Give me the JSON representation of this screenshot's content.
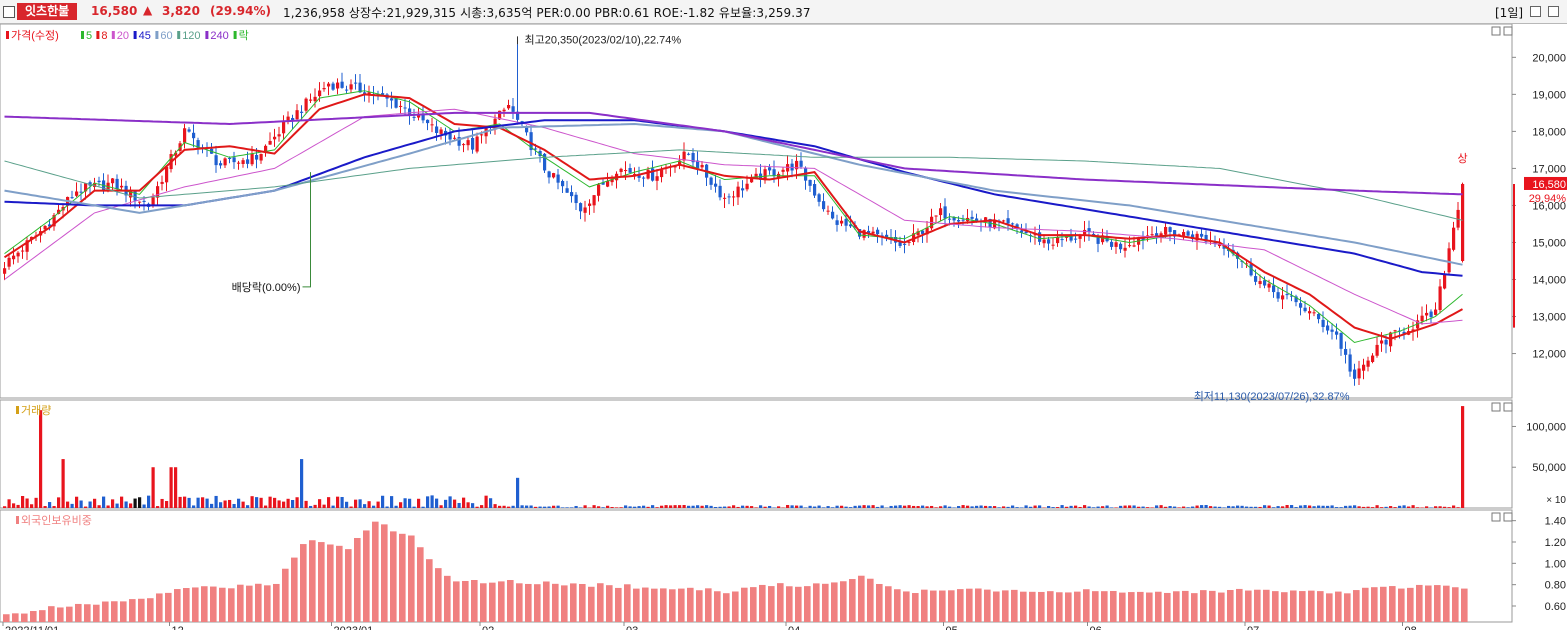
{
  "header": {
    "stock_name": "잇츠한불",
    "price": "16,580",
    "arrow": "▲",
    "change": "3,820",
    "change_pct": "(29.94%)",
    "metrics": "1,236,958  상장수:21,929,315  시총:3,635억  PER:0.00  PBR:0.61  ROE:-1.82  유보율:3,259.37",
    "period": "[1일]"
  },
  "colors": {
    "up": "#e8141d",
    "down": "#1f5fd0",
    "ma5": "#2db82d",
    "ma8": "#e01818",
    "ma20": "#cc55cc",
    "ma45": "#1a1ac8",
    "ma60": "#7f9fc8",
    "ma120": "#5aa08a",
    "ma240": "#8a2fc8",
    "foreign": "#f08080"
  },
  "panels": {
    "price": {
      "legend": [
        {
          "label": "가격(수정)",
          "color": "#e8141d"
        },
        {
          "label": "5",
          "color": "#2db82d"
        },
        {
          "label": "8",
          "color": "#e01818"
        },
        {
          "label": "20",
          "color": "#cc55cc"
        },
        {
          "label": "45",
          "color": "#1a1ac8"
        },
        {
          "label": "60",
          "color": "#7f9fc8"
        },
        {
          "label": "120",
          "color": "#5aa08a"
        },
        {
          "label": "240",
          "color": "#8a2fc8"
        },
        {
          "label": "락",
          "color": "#2db82d"
        }
      ],
      "annotations": {
        "high": "최고20,350(2023/02/10),22.74%",
        "low": "최저11,130(2023/07/26),32.87%",
        "dividend": "배당락(0.00%)",
        "limit_up": "상",
        "last_price": "16,580",
        "last_pct": "29.94%"
      }
    },
    "volume": {
      "legend": [
        {
          "label": "거래량",
          "color": "#d4a017"
        }
      ],
      "unit": "× 10"
    },
    "foreign": {
      "legend": [
        {
          "label": "외국인보유비중",
          "color": "#f08080"
        }
      ]
    }
  },
  "chart_data": [
    {
      "type": "candlestick",
      "title": "가격(수정)",
      "ylim": [
        10800,
        20900
      ],
      "y_ticks": [
        "20,000",
        "19,000",
        "18,000",
        "17,000",
        "16,000",
        "15,000",
        "14,000",
        "13,000",
        "12,000"
      ],
      "x_ticks": [
        "2022/11/01",
        "12",
        "2023/01",
        "02",
        "03",
        "04",
        "05",
        "06",
        "07",
        "08"
      ],
      "high": {
        "value": 20350,
        "date": "2023/02/10"
      },
      "low": {
        "value": 11130,
        "date": "2023/07/26"
      },
      "last": 16580,
      "close_path": [
        [
          0,
          14400
        ],
        [
          8,
          15300
        ],
        [
          16,
          16400
        ],
        [
          24,
          16600
        ],
        [
          32,
          16000
        ],
        [
          40,
          18000
        ],
        [
          48,
          17100
        ],
        [
          56,
          17300
        ],
        [
          64,
          18400
        ],
        [
          72,
          19300
        ],
        [
          80,
          19100
        ],
        [
          88,
          18700
        ],
        [
          96,
          18000
        ],
        [
          104,
          17600
        ],
        [
          112,
          18700
        ],
        [
          120,
          17000
        ],
        [
          128,
          15900
        ],
        [
          136,
          17000
        ],
        [
          144,
          16800
        ],
        [
          152,
          17400
        ],
        [
          160,
          16200
        ],
        [
          168,
          16800
        ],
        [
          176,
          17100
        ],
        [
          184,
          15600
        ],
        [
          192,
          15200
        ],
        [
          200,
          14900
        ],
        [
          208,
          15800
        ],
        [
          216,
          15600
        ],
        [
          224,
          15400
        ],
        [
          232,
          15000
        ],
        [
          240,
          15200
        ],
        [
          248,
          14900
        ],
        [
          256,
          15300
        ],
        [
          264,
          15200
        ],
        [
          272,
          14900
        ],
        [
          280,
          13800
        ],
        [
          288,
          13300
        ],
        [
          296,
          12500
        ],
        [
          300,
          11300
        ],
        [
          306,
          12300
        ],
        [
          312,
          12700
        ],
        [
          318,
          13100
        ],
        [
          324,
          16580
        ]
      ],
      "moving_averages": [
        {
          "name": "5",
          "points": [
            [
              0,
              14700
            ],
            [
              10,
              15600
            ],
            [
              20,
              16600
            ],
            [
              30,
              16300
            ],
            [
              40,
              17700
            ],
            [
              50,
              17300
            ],
            [
              60,
              17500
            ],
            [
              70,
              18900
            ],
            [
              80,
              19100
            ],
            [
              90,
              18800
            ],
            [
              100,
              18000
            ],
            [
              110,
              18200
            ],
            [
              120,
              17300
            ],
            [
              130,
              16500
            ],
            [
              140,
              16900
            ],
            [
              150,
              17200
            ],
            [
              160,
              16700
            ],
            [
              170,
              16800
            ],
            [
              180,
              16800
            ],
            [
              190,
              15200
            ],
            [
              200,
              15100
            ],
            [
              210,
              15700
            ],
            [
              220,
              15500
            ],
            [
              230,
              15100
            ],
            [
              240,
              15200
            ],
            [
              250,
              15000
            ],
            [
              260,
              15200
            ],
            [
              270,
              15000
            ],
            [
              280,
              14000
            ],
            [
              290,
              13300
            ],
            [
              300,
              12300
            ],
            [
              310,
              12600
            ],
            [
              318,
              13000
            ],
            [
              324,
              13600
            ]
          ]
        },
        {
          "name": "8",
          "points": [
            [
              0,
              14600
            ],
            [
              10,
              15400
            ],
            [
              20,
              16400
            ],
            [
              30,
              16400
            ],
            [
              40,
              17500
            ],
            [
              50,
              17600
            ],
            [
              60,
              17400
            ],
            [
              70,
              18600
            ],
            [
              80,
              19000
            ],
            [
              90,
              18900
            ],
            [
              100,
              18200
            ],
            [
              110,
              18100
            ],
            [
              120,
              17500
            ],
            [
              130,
              16700
            ],
            [
              140,
              16800
            ],
            [
              150,
              17100
            ],
            [
              160,
              16800
            ],
            [
              170,
              16700
            ],
            [
              180,
              16900
            ],
            [
              190,
              15300
            ],
            [
              200,
              15000
            ],
            [
              210,
              15500
            ],
            [
              220,
              15600
            ],
            [
              230,
              15200
            ],
            [
              240,
              15200
            ],
            [
              250,
              15100
            ],
            [
              260,
              15200
            ],
            [
              270,
              15000
            ],
            [
              280,
              14200
            ],
            [
              290,
              13600
            ],
            [
              300,
              12700
            ],
            [
              308,
              12400
            ],
            [
              318,
              12800
            ],
            [
              324,
              13200
            ]
          ]
        },
        {
          "name": "20",
          "points": [
            [
              0,
              14000
            ],
            [
              20,
              15800
            ],
            [
              40,
              16500
            ],
            [
              60,
              17000
            ],
            [
              80,
              18400
            ],
            [
              100,
              18600
            ],
            [
              120,
              18100
            ],
            [
              140,
              17400
            ],
            [
              160,
              17100
            ],
            [
              180,
              17000
            ],
            [
              190,
              16300
            ],
            [
              200,
              15600
            ],
            [
              220,
              15400
            ],
            [
              240,
              15300
            ],
            [
              260,
              15100
            ],
            [
              280,
              14800
            ],
            [
              300,
              13600
            ],
            [
              315,
              12800
            ],
            [
              324,
              12900
            ]
          ]
        },
        {
          "name": "45",
          "points": [
            [
              0,
              16100
            ],
            [
              20,
              16000
            ],
            [
              40,
              16000
            ],
            [
              60,
              16400
            ],
            [
              80,
              17300
            ],
            [
              100,
              18000
            ],
            [
              120,
              18300
            ],
            [
              140,
              18300
            ],
            [
              160,
              18000
            ],
            [
              180,
              17600
            ],
            [
              200,
              16900
            ],
            [
              220,
              16300
            ],
            [
              240,
              15900
            ],
            [
              260,
              15500
            ],
            [
              280,
              15100
            ],
            [
              300,
              14700
            ],
            [
              315,
              14200
            ],
            [
              324,
              14100
            ]
          ]
        },
        {
          "name": "60",
          "points": [
            [
              0,
              16400
            ],
            [
              30,
              15800
            ],
            [
              60,
              16400
            ],
            [
              90,
              17400
            ],
            [
              110,
              18100
            ],
            [
              140,
              18200
            ],
            [
              160,
              18000
            ],
            [
              190,
              17100
            ],
            [
              220,
              16400
            ],
            [
              250,
              16000
            ],
            [
              280,
              15400
            ],
            [
              300,
              15000
            ],
            [
              324,
              14400
            ]
          ]
        },
        {
          "name": "120",
          "points": [
            [
              0,
              17200
            ],
            [
              30,
              16200
            ],
            [
              60,
              16500
            ],
            [
              90,
              17000
            ],
            [
              120,
              17300
            ],
            [
              150,
              17500
            ],
            [
              180,
              17300
            ],
            [
              210,
              17300
            ],
            [
              240,
              17200
            ],
            [
              270,
              17000
            ],
            [
              300,
              16300
            ],
            [
              324,
              15600
            ]
          ]
        },
        {
          "name": "240",
          "points": [
            [
              0,
              18400
            ],
            [
              50,
              18200
            ],
            [
              100,
              18500
            ],
            [
              130,
              18500
            ],
            [
              160,
              18000
            ],
            [
              200,
              17000
            ],
            [
              240,
              16700
            ],
            [
              280,
              16500
            ],
            [
              300,
              16400
            ],
            [
              324,
              16300
            ]
          ]
        }
      ]
    },
    {
      "type": "bar",
      "title": "거래량",
      "y_ticks": [
        "100,000",
        "50,000"
      ],
      "unit": "× 10",
      "ylim": [
        0,
        130000
      ],
      "spikes": [
        {
          "i": 8,
          "v": 120000
        },
        {
          "i": 13,
          "v": 60000
        },
        {
          "i": 33,
          "v": 50000
        },
        {
          "i": 37,
          "v": 50000
        },
        {
          "i": 38,
          "v": 50000
        },
        {
          "i": 66,
          "v": 60000
        },
        {
          "i": 114,
          "v": 37000
        },
        {
          "i": 324,
          "v": 125000
        }
      ]
    },
    {
      "type": "bar",
      "title": "외국인보유비중",
      "y_ticks": [
        "1.40",
        "1.20",
        "1.00",
        "0.80",
        "0.60"
      ],
      "ylim": [
        0.45,
        1.5
      ],
      "profile": [
        [
          0,
          0.52
        ],
        [
          10,
          0.58
        ],
        [
          20,
          0.62
        ],
        [
          30,
          0.66
        ],
        [
          40,
          0.78
        ],
        [
          50,
          0.78
        ],
        [
          60,
          0.82
        ],
        [
          66,
          1.2
        ],
        [
          70,
          1.2
        ],
        [
          76,
          1.15
        ],
        [
          82,
          1.38
        ],
        [
          90,
          1.25
        ],
        [
          96,
          0.95
        ],
        [
          100,
          0.82
        ],
        [
          110,
          0.83
        ],
        [
          120,
          0.82
        ],
        [
          130,
          0.8
        ],
        [
          150,
          0.76
        ],
        [
          160,
          0.74
        ],
        [
          170,
          0.8
        ],
        [
          180,
          0.8
        ],
        [
          190,
          0.88
        ],
        [
          200,
          0.74
        ],
        [
          220,
          0.75
        ],
        [
          240,
          0.74
        ],
        [
          260,
          0.74
        ],
        [
          280,
          0.74
        ],
        [
          296,
          0.72
        ],
        [
          304,
          0.78
        ],
        [
          324,
          0.78
        ]
      ]
    }
  ]
}
